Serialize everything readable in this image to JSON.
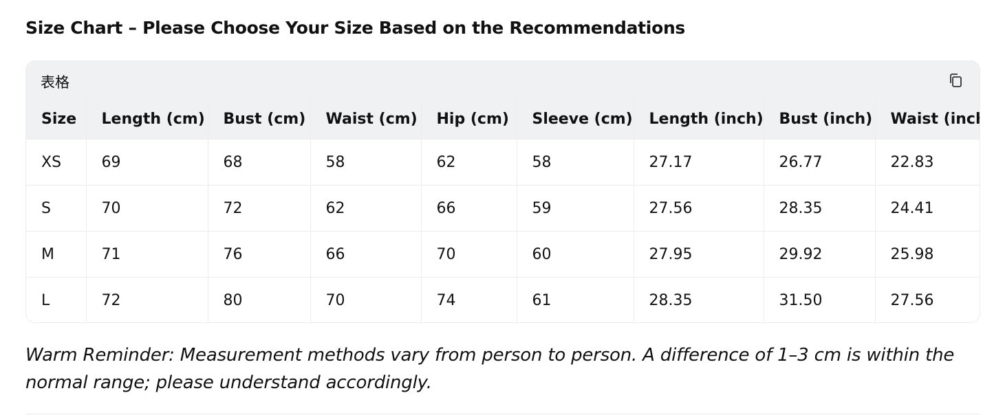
{
  "title": "Size Chart – Please Choose Your Size Based on the Recommendations",
  "table": {
    "label": "表格",
    "columns": [
      "Size",
      "Length (cm)",
      "Bust (cm)",
      "Waist (cm)",
      "Hip (cm)",
      "Sleeve (cm)",
      "Length (inch)",
      "Bust (inch)",
      "Waist (inch)"
    ],
    "rows": [
      [
        "XS",
        "69",
        "68",
        "58",
        "62",
        "58",
        "27.17",
        "26.77",
        "22.83"
      ],
      [
        "S",
        "70",
        "72",
        "62",
        "66",
        "59",
        "27.56",
        "28.35",
        "24.41"
      ],
      [
        "M",
        "71",
        "76",
        "66",
        "70",
        "60",
        "27.95",
        "29.92",
        "25.98"
      ],
      [
        "L",
        "72",
        "80",
        "70",
        "74",
        "61",
        "28.35",
        "31.50",
        "27.56"
      ]
    ]
  },
  "note": "Warm Reminder: Measurement methods vary from person to person. A difference of 1–3 cm is within the normal range; please understand accordingly."
}
